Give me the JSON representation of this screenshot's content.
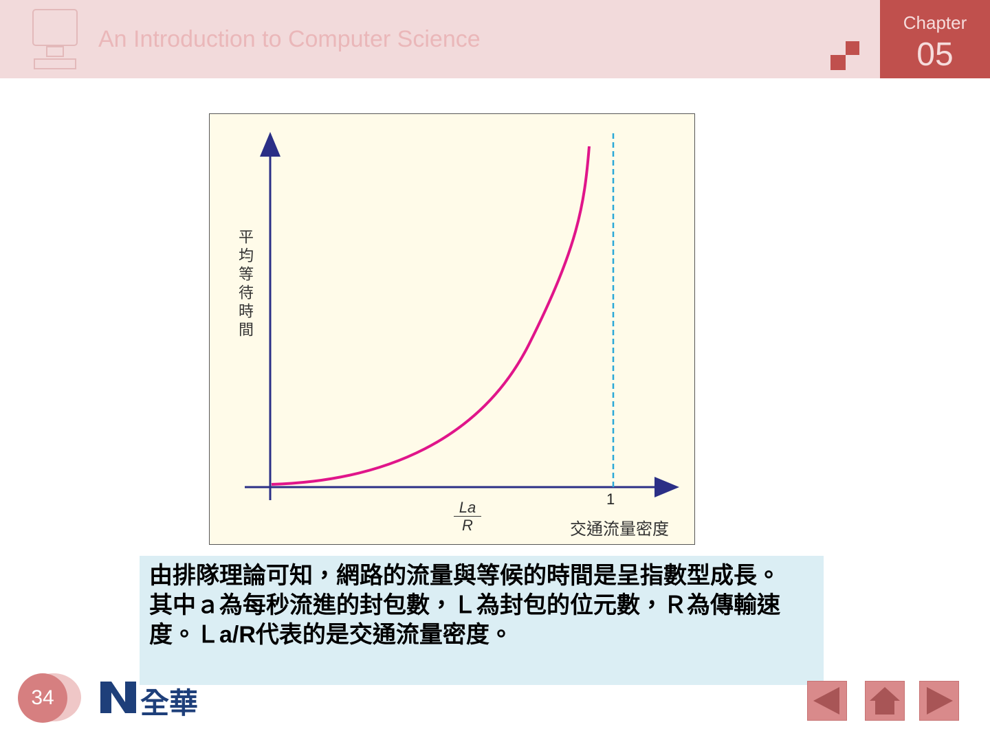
{
  "header": {
    "title": "An Introduction to Computer Science",
    "chapter_label": "Chapter",
    "chapter_number": "05"
  },
  "figure": {
    "y_axis_label": "平均等待時間",
    "x_tick": "1",
    "fraction_numerator": "La",
    "fraction_denominator": "R",
    "x_axis_label": "交通流量密度"
  },
  "caption": {
    "paragraphs": [
      "由排隊理論可知，網路的流量與等候的時間是呈指數型成長。",
      "其中ａ為每秒流進的封包數，Ｌ為封包的位元數，Ｒ為傳輸速度。Ｌa/R代表的是交通流量密度。"
    ]
  },
  "footer": {
    "page_number": "34",
    "logo": "全華"
  }
}
